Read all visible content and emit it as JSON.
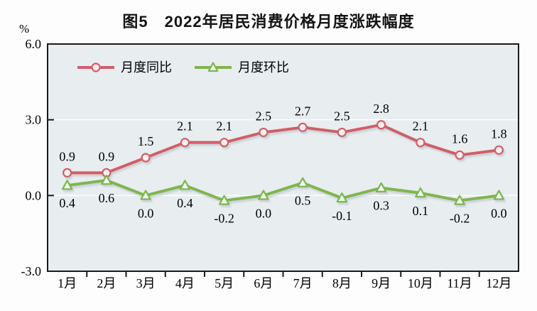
{
  "page": {
    "background": "#fdfdfd"
  },
  "chart_data": {
    "type": "line",
    "title": "图5　2022年居民消费价格月度涨跌幅度",
    "ylabel": "%",
    "xlabel": "",
    "ylim": [
      -3.0,
      6.0
    ],
    "yticks": [
      6.0,
      3.0,
      0.0,
      -3.0
    ],
    "ytick_labels": [
      "6.0",
      "3.0",
      "0.0",
      "-3.0"
    ],
    "categories": [
      "1月",
      "2月",
      "3月",
      "4月",
      "5月",
      "6月",
      "7月",
      "8月",
      "9月",
      "10月",
      "11月",
      "12月"
    ],
    "series": [
      {
        "name": "月度同比",
        "marker": "circle",
        "color": "#cf5f68",
        "marker_fill": "#f7eef0",
        "label_position": "above",
        "values": [
          0.9,
          0.9,
          1.5,
          2.1,
          2.1,
          2.5,
          2.7,
          2.5,
          2.8,
          2.1,
          1.6,
          1.8
        ],
        "value_labels": [
          "0.9",
          "0.9",
          "1.5",
          "2.1",
          "2.1",
          "2.5",
          "2.7",
          "2.5",
          "2.8",
          "2.1",
          "1.6",
          "1.8"
        ]
      },
      {
        "name": "月度环比",
        "marker": "triangle",
        "color": "#7db64f",
        "marker_fill": "#f3f9ec",
        "label_position": "below",
        "values": [
          0.4,
          0.6,
          0.0,
          0.4,
          -0.2,
          0.0,
          0.5,
          -0.1,
          0.3,
          0.1,
          -0.2,
          0.0
        ],
        "value_labels": [
          "0.4",
          "0.6",
          "0.0",
          "0.4",
          "-0.2",
          "0.0",
          "0.5",
          "-0.1",
          "0.3",
          "0.1",
          "-0.2",
          "0.0"
        ]
      }
    ],
    "grid": {
      "horizontal_gridlines_at": [
        3.0,
        0.0
      ],
      "color": "#ffffff"
    },
    "legend_position": "top-left-inside",
    "plot_background": "#e8edf0",
    "axis_color": "#1a1a1a"
  }
}
